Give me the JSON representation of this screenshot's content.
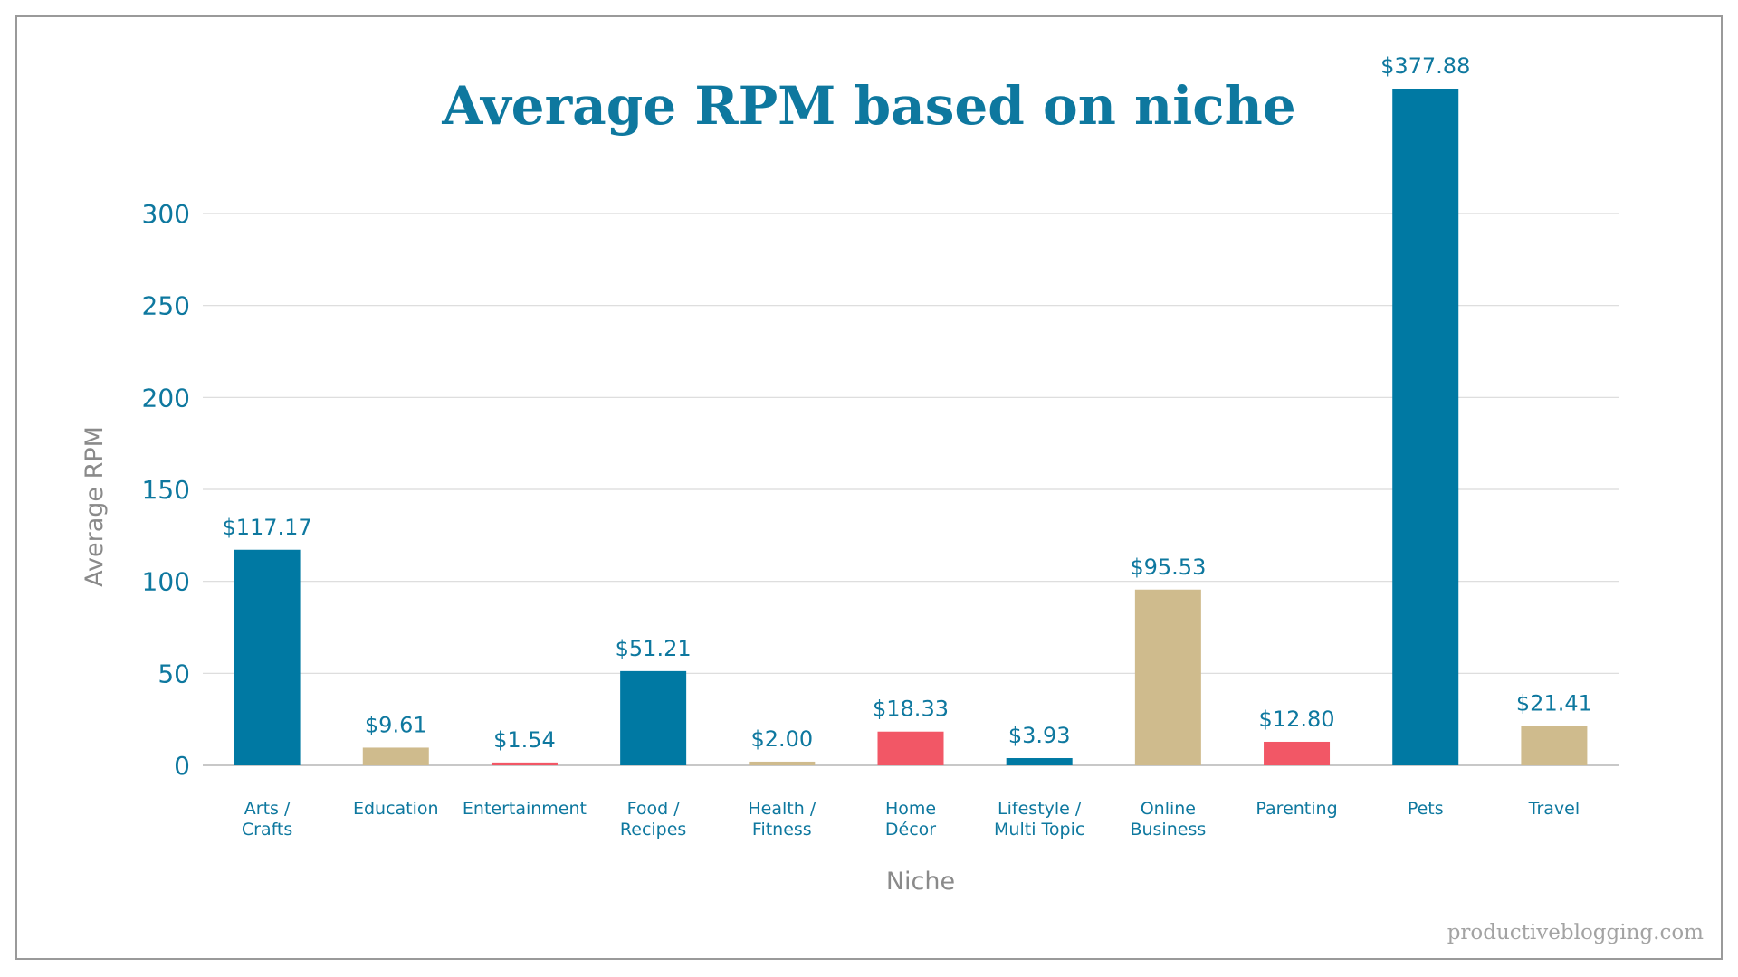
{
  "chart_data": {
    "type": "bar",
    "title": "Average RPM based on niche",
    "xlabel": "Niche",
    "ylabel": "Average RPM",
    "ylim": [
      0,
      300
    ],
    "yticks": [
      "0",
      "50",
      "100",
      "150",
      "200",
      "250",
      "300"
    ],
    "grid": true,
    "categories": [
      [
        "Arts /",
        "Crafts"
      ],
      [
        "Education"
      ],
      [
        "Entertainment"
      ],
      [
        "Food /",
        "Recipes"
      ],
      [
        "Health /",
        "Fitness"
      ],
      [
        "Home",
        "Décor"
      ],
      [
        "Lifestyle /",
        "Multi Topic"
      ],
      [
        "Online",
        "Business"
      ],
      [
        "Parenting"
      ],
      [
        "Pets"
      ],
      [
        "Travel"
      ]
    ],
    "values": [
      117.17,
      9.61,
      1.54,
      51.21,
      2.0,
      18.33,
      3.93,
      95.53,
      12.8,
      377.88,
      21.41
    ],
    "value_labels": [
      "$117.17",
      "$9.61",
      "$1.54",
      "$51.21",
      "$2.00",
      "$18.33",
      "$3.93",
      "$95.53",
      "$12.80",
      "$377.88",
      "$21.41"
    ],
    "bar_colors": [
      "#0079a3",
      "#cfbb8d",
      "#f25766",
      "#0079a3",
      "#cfbb8d",
      "#f25766",
      "#0079a3",
      "#cfbb8d",
      "#f25766",
      "#0079a3",
      "#cfbb8d"
    ]
  },
  "watermark": "productiveblogging.com",
  "colors": {
    "title": "#0e789f",
    "ticks": "#0e789f",
    "category_labels": "#0e789f",
    "value_labels": "#0e789f",
    "axis_titles": "#8a8a8a",
    "gridlines": "#d9d9d9",
    "baseline": "#c8c8c8",
    "watermark": "#a3a3a3"
  }
}
